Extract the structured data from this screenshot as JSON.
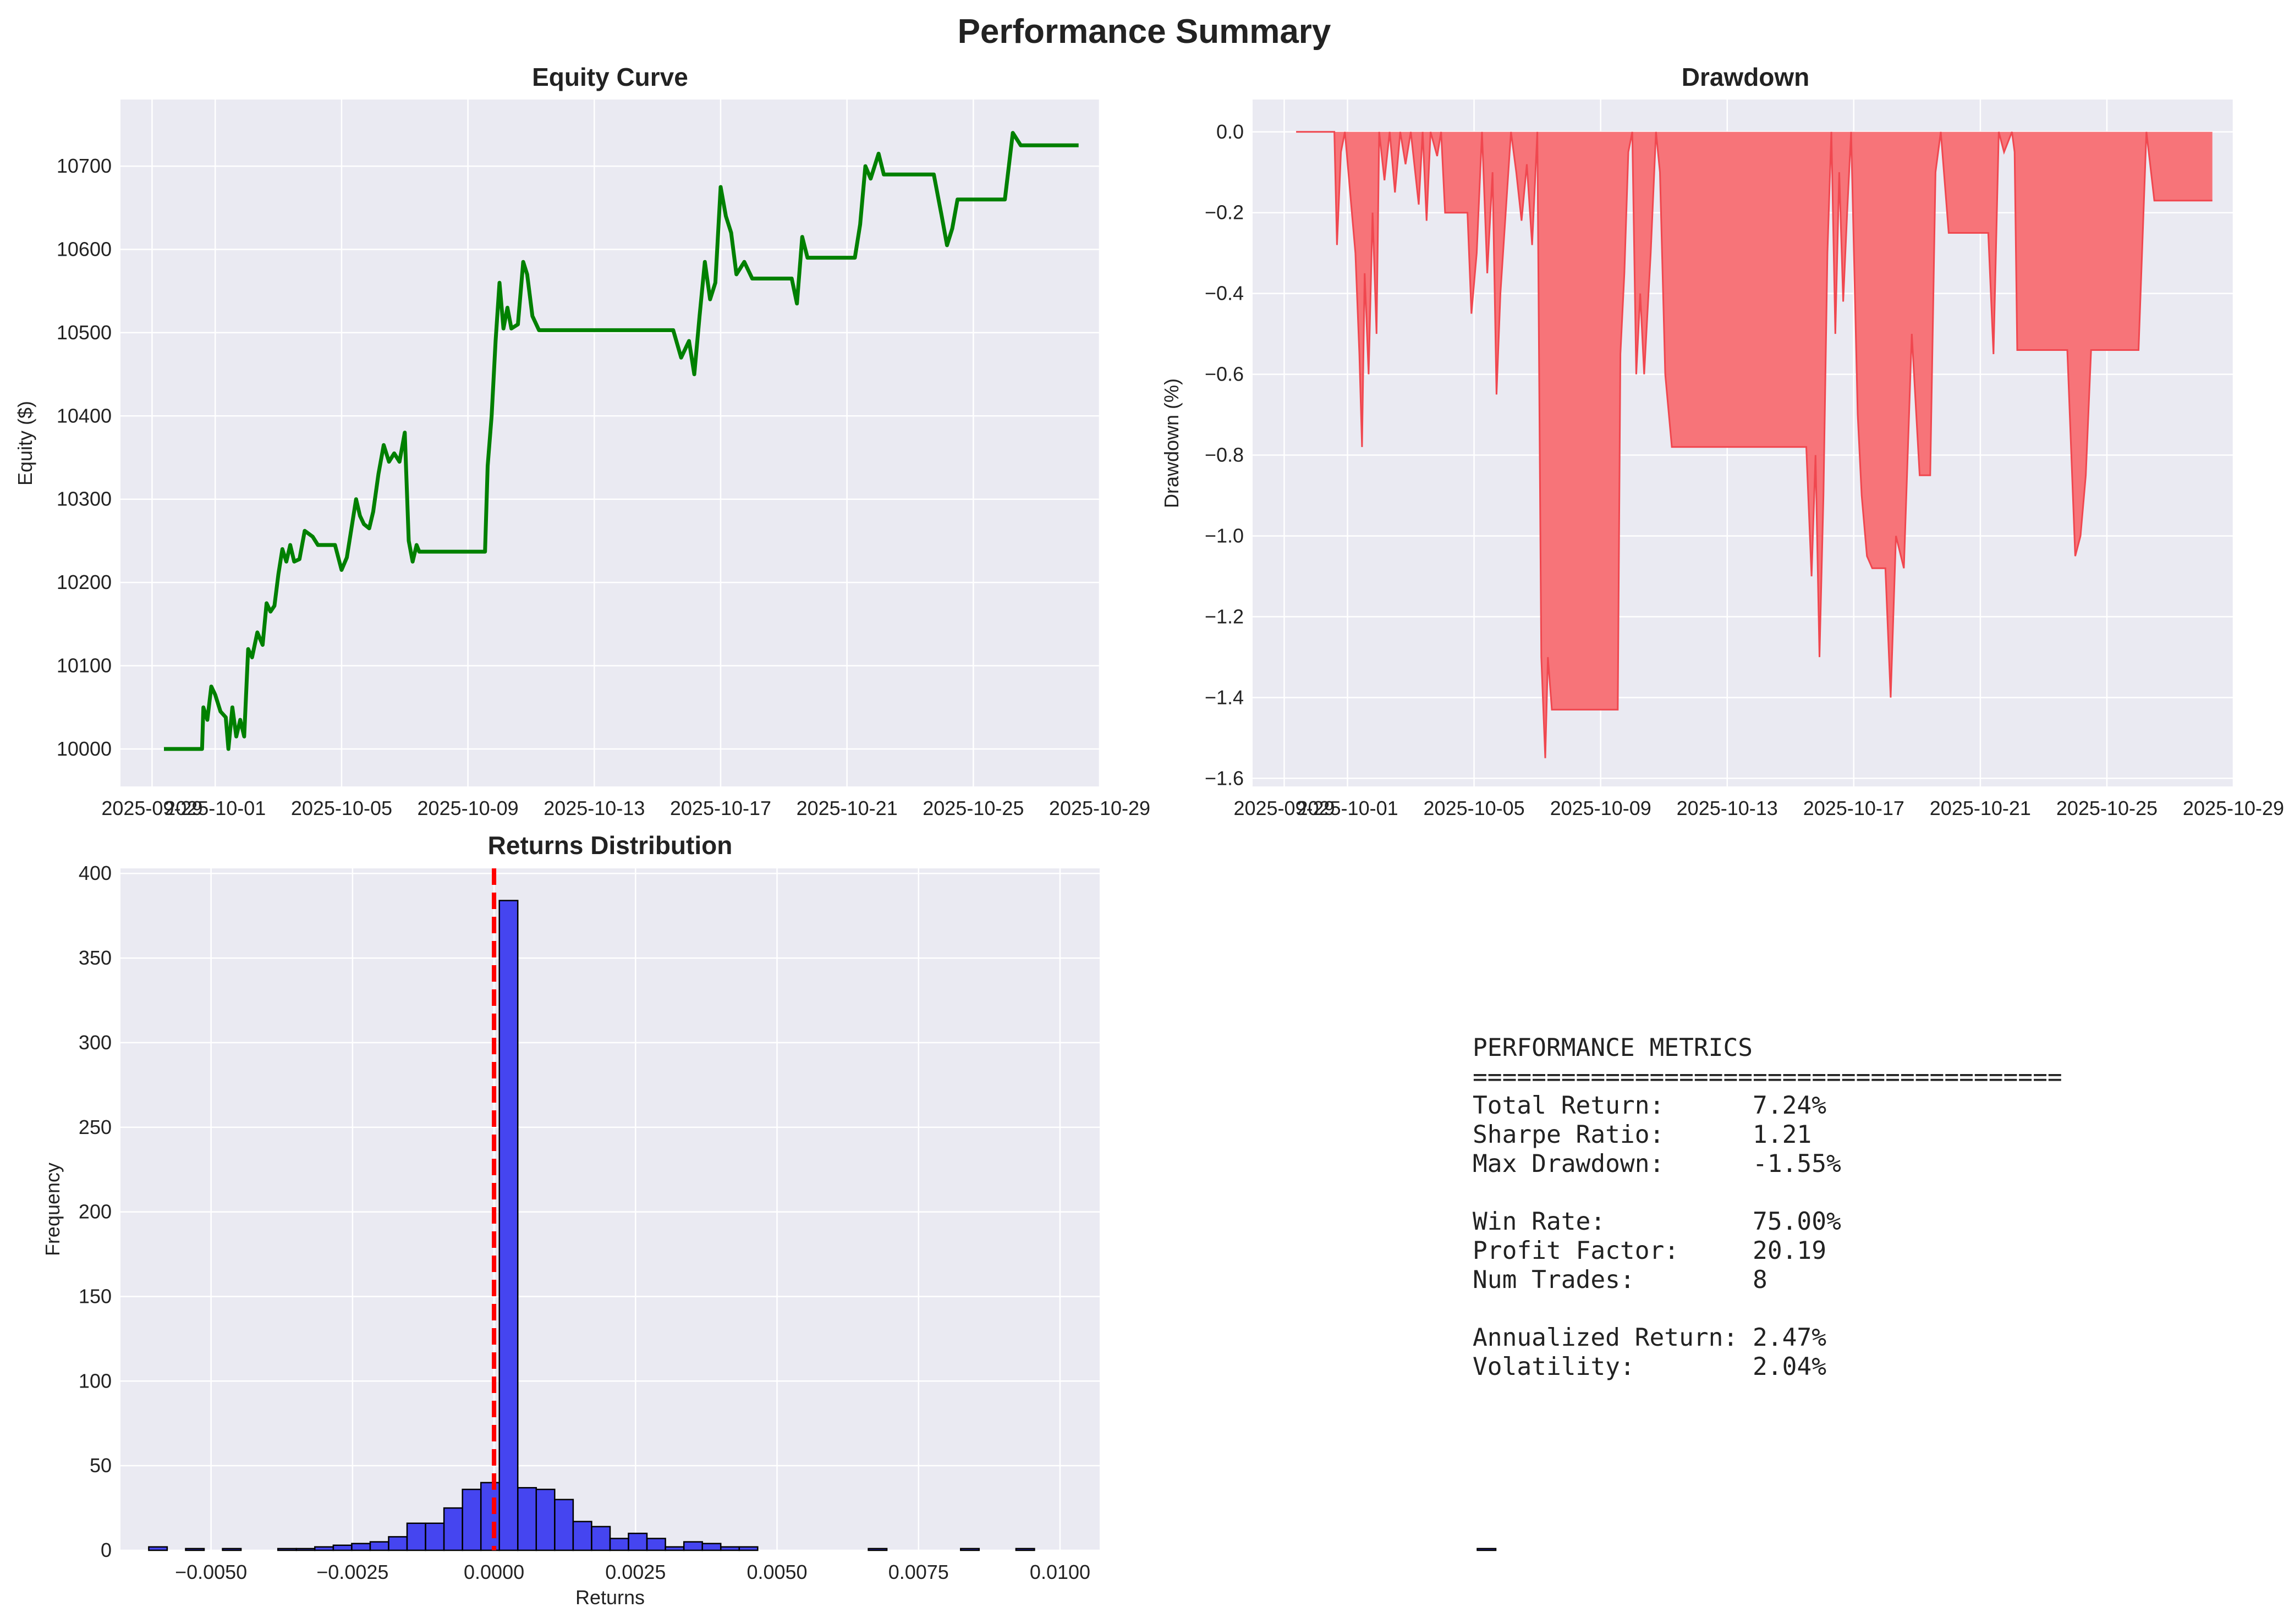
{
  "suptitle": "Performance Summary",
  "colors": {
    "panel_bg": "#eaeaf2",
    "equity_line": "#008000",
    "drawdown_fill": "#f77479",
    "drawdown_line": "#f0474f",
    "hist_fill": "#4545f0",
    "hist_edge": "#000000",
    "zero_line": "#ff0000"
  },
  "chart_data": [
    {
      "type": "line",
      "title": "Equity Curve",
      "xlabel": "",
      "ylabel": "Equity ($)",
      "x_ticks": [
        "2025-09-29",
        "2025-10-01",
        "2025-10-05",
        "2025-10-09",
        "2025-10-13",
        "2025-10-17",
        "2025-10-21",
        "2025-10-25",
        "2025-10-29"
      ],
      "x_range": [
        "2025-09-28",
        "2025-10-29"
      ],
      "y_ticks": [
        10000,
        10100,
        10200,
        10300,
        10400,
        10500,
        10600,
        10700
      ],
      "ylim": [
        9955,
        10780
      ],
      "grid": true,
      "points": [
        [
          "2025-09-29T09:00",
          10000
        ],
        [
          "2025-09-30T14:00",
          10000
        ],
        [
          "2025-09-30T15:00",
          10050
        ],
        [
          "2025-09-30T18:00",
          10035
        ],
        [
          "2025-09-30T21:00",
          10075
        ],
        [
          "2025-10-01T00:00",
          10065
        ],
        [
          "2025-10-01T04:00",
          10045
        ],
        [
          "2025-10-01T08:00",
          10038
        ],
        [
          "2025-10-01T10:00",
          10000
        ],
        [
          "2025-10-01T13:00",
          10050
        ],
        [
          "2025-10-01T16:00",
          10015
        ],
        [
          "2025-10-01T19:00",
          10035
        ],
        [
          "2025-10-01T22:00",
          10015
        ],
        [
          "2025-10-02T01:00",
          10120
        ],
        [
          "2025-10-02T04:00",
          10110
        ],
        [
          "2025-10-02T08:00",
          10140
        ],
        [
          "2025-10-02T12:00",
          10125
        ],
        [
          "2025-10-02T15:00",
          10175
        ],
        [
          "2025-10-02T18:00",
          10165
        ],
        [
          "2025-10-02T21:00",
          10172
        ],
        [
          "2025-10-03T00:00",
          10210
        ],
        [
          "2025-10-03T03:00",
          10240
        ],
        [
          "2025-10-03T06:00",
          10225
        ],
        [
          "2025-10-03T09:00",
          10245
        ],
        [
          "2025-10-03T12:00",
          10225
        ],
        [
          "2025-10-03T16:00",
          10228
        ],
        [
          "2025-10-03T20:00",
          10262
        ],
        [
          "2025-10-04T02:00",
          10255
        ],
        [
          "2025-10-04T06:00",
          10245
        ],
        [
          "2025-10-04T19:00",
          10245
        ],
        [
          "2025-10-05T00:00",
          10215
        ],
        [
          "2025-10-05T04:00",
          10230
        ],
        [
          "2025-10-05T08:00",
          10270
        ],
        [
          "2025-10-05T11:00",
          10300
        ],
        [
          "2025-10-05T14:00",
          10280
        ],
        [
          "2025-10-05T17:00",
          10270
        ],
        [
          "2025-10-05T21:00",
          10265
        ],
        [
          "2025-10-06T00:00",
          10285
        ],
        [
          "2025-10-06T04:00",
          10330
        ],
        [
          "2025-10-06T08:00",
          10365
        ],
        [
          "2025-10-06T12:00",
          10345
        ],
        [
          "2025-10-06T16:00",
          10355
        ],
        [
          "2025-10-06T20:00",
          10345
        ],
        [
          "2025-10-07T00:00",
          10380
        ],
        [
          "2025-10-07T03:00",
          10250
        ],
        [
          "2025-10-07T06:00",
          10225
        ],
        [
          "2025-10-07T09:00",
          10245
        ],
        [
          "2025-10-07T11:00",
          10237
        ],
        [
          "2025-10-09T13:00",
          10237
        ],
        [
          "2025-10-09T15:00",
          10340
        ],
        [
          "2025-10-09T18:00",
          10400
        ],
        [
          "2025-10-09T21:00",
          10490
        ],
        [
          "2025-10-10T00:00",
          10560
        ],
        [
          "2025-10-10T03:00",
          10505
        ],
        [
          "2025-10-10T06:00",
          10530
        ],
        [
          "2025-10-10T09:00",
          10505
        ],
        [
          "2025-10-10T14:00",
          10510
        ],
        [
          "2025-10-10T18:00",
          10585
        ],
        [
          "2025-10-10T21:00",
          10570
        ],
        [
          "2025-10-11T01:00",
          10520
        ],
        [
          "2025-10-11T06:00",
          10503
        ],
        [
          "2025-10-15T12:00",
          10503
        ],
        [
          "2025-10-15T18:00",
          10470
        ],
        [
          "2025-10-16T00:00",
          10490
        ],
        [
          "2025-10-16T04:00",
          10450
        ],
        [
          "2025-10-16T08:00",
          10520
        ],
        [
          "2025-10-16T12:00",
          10585
        ],
        [
          "2025-10-16T16:00",
          10540
        ],
        [
          "2025-10-16T20:00",
          10560
        ],
        [
          "2025-10-17T00:00",
          10675
        ],
        [
          "2025-10-17T04:00",
          10640
        ],
        [
          "2025-10-17T08:00",
          10620
        ],
        [
          "2025-10-17T12:00",
          10570
        ],
        [
          "2025-10-17T18:00",
          10585
        ],
        [
          "2025-10-18T00:00",
          10565
        ],
        [
          "2025-10-19T06:00",
          10565
        ],
        [
          "2025-10-19T10:00",
          10535
        ],
        [
          "2025-10-19T14:00",
          10615
        ],
        [
          "2025-10-19T18:00",
          10590
        ],
        [
          "2025-10-20T00:00",
          10590
        ],
        [
          "2025-10-21T06:00",
          10590
        ],
        [
          "2025-10-21T10:00",
          10630
        ],
        [
          "2025-10-21T14:00",
          10700
        ],
        [
          "2025-10-21T18:00",
          10685
        ],
        [
          "2025-10-22T00:00",
          10715
        ],
        [
          "2025-10-22T04:00",
          10690
        ],
        [
          "2025-10-23T18:00",
          10690
        ],
        [
          "2025-10-24T00:00",
          10640
        ],
        [
          "2025-10-24T04:00",
          10605
        ],
        [
          "2025-10-24T08:00",
          10625
        ],
        [
          "2025-10-24T12:00",
          10660
        ],
        [
          "2025-10-26T00:00",
          10660
        ],
        [
          "2025-10-26T06:00",
          10740
        ],
        [
          "2025-10-26T12:00",
          10725
        ],
        [
          "2025-10-28T08:00",
          10725
        ]
      ]
    },
    {
      "type": "area",
      "title": "Drawdown",
      "xlabel": "",
      "ylabel": "Drawdown (%)",
      "x_ticks": [
        "2025-09-29",
        "2025-10-01",
        "2025-10-05",
        "2025-10-09",
        "2025-10-13",
        "2025-10-17",
        "2025-10-21",
        "2025-10-25",
        "2025-10-29"
      ],
      "x_range": [
        "2025-09-28",
        "2025-10-29"
      ],
      "y_ticks": [
        0.0,
        -0.2,
        -0.4,
        -0.6,
        -0.8,
        -1.0,
        -1.2,
        -1.4,
        -1.6
      ],
      "ylim": [
        -1.62,
        0.08
      ],
      "grid": true,
      "points": [
        [
          "2025-09-29T09:00",
          0.0
        ],
        [
          "2025-09-30T14:00",
          0.0
        ],
        [
          "2025-09-30T16:00",
          -0.28
        ],
        [
          "2025-09-30T19:00",
          -0.05
        ],
        [
          "2025-09-30T22:00",
          0.0
        ],
        [
          "2025-10-01T02:00",
          -0.15
        ],
        [
          "2025-10-01T06:00",
          -0.3
        ],
        [
          "2025-10-01T09:00",
          -0.55
        ],
        [
          "2025-10-01T11:00",
          -0.78
        ],
        [
          "2025-10-01T13:00",
          -0.35
        ],
        [
          "2025-10-01T16:00",
          -0.6
        ],
        [
          "2025-10-01T19:00",
          -0.2
        ],
        [
          "2025-10-01T22:00",
          -0.5
        ],
        [
          "2025-10-02T00:00",
          0.0
        ],
        [
          "2025-10-02T04:00",
          -0.12
        ],
        [
          "2025-10-02T08:00",
          0.0
        ],
        [
          "2025-10-02T12:00",
          -0.15
        ],
        [
          "2025-10-02T16:00",
          0.0
        ],
        [
          "2025-10-02T20:00",
          -0.08
        ],
        [
          "2025-10-03T00:00",
          0.0
        ],
        [
          "2025-10-03T06:00",
          -0.18
        ],
        [
          "2025-10-03T09:00",
          0.0
        ],
        [
          "2025-10-03T12:00",
          -0.22
        ],
        [
          "2025-10-03T15:00",
          0.0
        ],
        [
          "2025-10-03T20:00",
          -0.06
        ],
        [
          "2025-10-03T23:00",
          0.0
        ],
        [
          "2025-10-04T02:00",
          -0.2
        ],
        [
          "2025-10-04T19:00",
          -0.2
        ],
        [
          "2025-10-04T22:00",
          -0.45
        ],
        [
          "2025-10-05T02:00",
          -0.3
        ],
        [
          "2025-10-05T06:00",
          0.0
        ],
        [
          "2025-10-05T10:00",
          -0.35
        ],
        [
          "2025-10-05T14:00",
          -0.1
        ],
        [
          "2025-10-05T17:00",
          -0.65
        ],
        [
          "2025-10-05T20:00",
          -0.4
        ],
        [
          "2025-10-06T00:00",
          -0.2
        ],
        [
          "2025-10-06T04:00",
          0.0
        ],
        [
          "2025-10-06T08:00",
          -0.1
        ],
        [
          "2025-10-06T12:00",
          -0.22
        ],
        [
          "2025-10-06T16:00",
          -0.08
        ],
        [
          "2025-10-06T20:00",
          -0.28
        ],
        [
          "2025-10-07T00:00",
          0.0
        ],
        [
          "2025-10-07T03:00",
          -1.3
        ],
        [
          "2025-10-07T06:00",
          -1.55
        ],
        [
          "2025-10-07T08:00",
          -1.3
        ],
        [
          "2025-10-07T11:00",
          -1.43
        ],
        [
          "2025-10-09T13:00",
          -1.43
        ],
        [
          "2025-10-09T15:00",
          -0.55
        ],
        [
          "2025-10-09T18:00",
          -0.35
        ],
        [
          "2025-10-09T21:00",
          -0.05
        ],
        [
          "2025-10-10T00:00",
          0.0
        ],
        [
          "2025-10-10T03:00",
          -0.6
        ],
        [
          "2025-10-10T06:00",
          -0.4
        ],
        [
          "2025-10-10T09:00",
          -0.6
        ],
        [
          "2025-10-10T14:00",
          -0.3
        ],
        [
          "2025-10-10T18:00",
          0.0
        ],
        [
          "2025-10-10T21:00",
          -0.1
        ],
        [
          "2025-10-11T01:00",
          -0.6
        ],
        [
          "2025-10-11T06:00",
          -0.78
        ],
        [
          "2025-10-15T12:00",
          -0.78
        ],
        [
          "2025-10-15T16:00",
          -1.1
        ],
        [
          "2025-10-15T19:00",
          -0.8
        ],
        [
          "2025-10-15T22:00",
          -1.3
        ],
        [
          "2025-10-16T01:00",
          -0.9
        ],
        [
          "2025-10-16T04:00",
          -0.3
        ],
        [
          "2025-10-16T07:00",
          0.0
        ],
        [
          "2025-10-16T10:00",
          -0.5
        ],
        [
          "2025-10-16T13:00",
          -0.1
        ],
        [
          "2025-10-16T16:00",
          -0.42
        ],
        [
          "2025-10-16T19:00",
          -0.2
        ],
        [
          "2025-10-16T22:00",
          0.0
        ],
        [
          "2025-10-17T03:00",
          -0.7
        ],
        [
          "2025-10-17T06:00",
          -0.9
        ],
        [
          "2025-10-17T10:00",
          -1.05
        ],
        [
          "2025-10-17T14:00",
          -1.08
        ],
        [
          "2025-10-18T00:00",
          -1.08
        ],
        [
          "2025-10-18T04:00",
          -1.4
        ],
        [
          "2025-10-18T08:00",
          -1.0
        ],
        [
          "2025-10-18T14:00",
          -1.08
        ],
        [
          "2025-10-18T20:00",
          -0.5
        ],
        [
          "2025-10-19T02:00",
          -0.85
        ],
        [
          "2025-10-19T06:00",
          -0.85
        ],
        [
          "2025-10-19T10:00",
          -0.85
        ],
        [
          "2025-10-19T14:00",
          -0.1
        ],
        [
          "2025-10-19T18:00",
          0.0
        ],
        [
          "2025-10-20T00:00",
          -0.25
        ],
        [
          "2025-10-21T06:00",
          -0.25
        ],
        [
          "2025-10-21T10:00",
          -0.55
        ],
        [
          "2025-10-21T14:00",
          0.0
        ],
        [
          "2025-10-21T18:00",
          -0.05
        ],
        [
          "2025-10-22T00:00",
          0.0
        ],
        [
          "2025-10-22T02:00",
          -0.05
        ],
        [
          "2025-10-22T04:00",
          -0.54
        ],
        [
          "2025-10-23T18:00",
          -0.54
        ],
        [
          "2025-10-24T00:00",
          -1.05
        ],
        [
          "2025-10-24T04:00",
          -1.0
        ],
        [
          "2025-10-24T08:00",
          -0.85
        ],
        [
          "2025-10-24T12:00",
          -0.54
        ],
        [
          "2025-10-26T00:00",
          -0.54
        ],
        [
          "2025-10-26T06:00",
          0.0
        ],
        [
          "2025-10-26T12:00",
          -0.17
        ],
        [
          "2025-10-28T08:00",
          -0.17
        ]
      ]
    },
    {
      "type": "bar",
      "title": "Returns Distribution",
      "xlabel": "Returns",
      "ylabel": "Frequency",
      "x_ticks": [
        -0.005,
        -0.0025,
        0.0,
        0.0025,
        0.005,
        0.0075,
        0.01
      ],
      "x_tick_labels": [
        "−0.0050",
        "−0.0025",
        "0.0000",
        "0.0025",
        "0.0050",
        "0.0075",
        "0.0100"
      ],
      "xlim": [
        -0.0066,
        0.0107
      ],
      "y_ticks": [
        0,
        50,
        100,
        150,
        200,
        250,
        300,
        350,
        400
      ],
      "ylim": [
        0,
        403
      ],
      "grid": true,
      "bin_start": -0.0061,
      "bin_width": 0.000326,
      "counts": [
        2,
        0,
        1,
        0,
        1,
        0,
        0,
        1,
        1,
        2,
        3,
        4,
        5,
        8,
        16,
        16,
        25,
        36,
        40,
        384,
        37,
        36,
        30,
        17,
        14,
        7,
        10,
        7,
        2,
        5,
        4,
        2,
        2,
        0,
        0,
        0,
        0,
        0,
        0,
        1,
        0,
        0,
        0,
        0,
        1,
        0,
        0,
        1,
        0,
        0,
        0,
        0,
        0,
        0,
        0,
        0,
        0,
        0,
        0,
        0,
        0,
        0,
        0,
        0,
        0,
        0,
        0,
        0,
        0,
        0,
        0,
        0,
        1
      ],
      "zero_line": 0.0
    }
  ],
  "metrics_lines": [
    "PERFORMANCE METRICS",
    "========================================",
    "Total Return:      7.24%",
    "Sharpe Ratio:      1.21",
    "Max Drawdown:      -1.55%",
    "",
    "Win Rate:          75.00%",
    "Profit Factor:     20.19",
    "Num Trades:        8",
    "",
    "Annualized Return: 2.47%",
    "Volatility:        2.04%"
  ]
}
